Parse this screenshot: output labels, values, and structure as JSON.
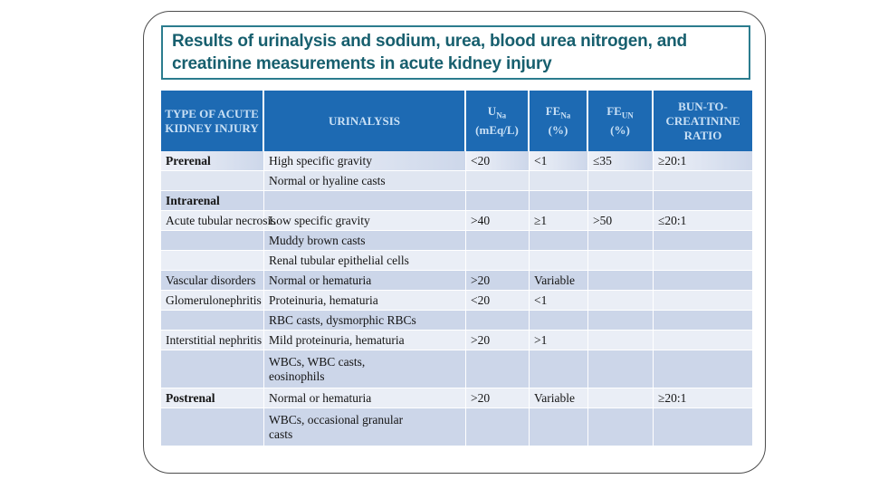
{
  "slide": {
    "title": "Results of urinalysis and sodium, urea, blood urea nitrogen, and creatinine measurements in acute kidney injury"
  },
  "colors": {
    "header_bg": "#1d6ab3",
    "header_text": "#c9e0f5",
    "title_text": "#175f6e",
    "title_border": "#2b7c8e",
    "row_light": "#eaeef6",
    "row_medium": "#ccd6e9",
    "outline": "#4d4d4d"
  },
  "table": {
    "columns": [
      {
        "id": "type",
        "label": "TYPE OF ACUTE KIDNEY INJURY"
      },
      {
        "id": "urinalysis",
        "label": "URINALYSIS"
      },
      {
        "id": "una",
        "base": "U",
        "sub": "Na",
        "unit": "(mEq/L)"
      },
      {
        "id": "fena",
        "base": "FE",
        "sub": "Na",
        "unit": "(%)"
      },
      {
        "id": "feun",
        "base": "FE",
        "sub": "UN",
        "unit": "(%)"
      },
      {
        "id": "bun",
        "label": "BUN-TO-CREATININE RATIO"
      }
    ],
    "rows": [
      {
        "type": "Prerenal",
        "bold": true,
        "urinalysis": "High specific gravity",
        "una": "<20",
        "fena": "<1",
        "feun": "≤35",
        "bun": "≥20:1",
        "shade": "grad",
        "tall": false
      },
      {
        "type": "",
        "bold": false,
        "urinalysis": "Normal or hyaline casts",
        "una": "",
        "fena": "",
        "feun": "",
        "bun": "",
        "shade": "mid",
        "tall": false
      },
      {
        "type": "Intrarenal",
        "bold": true,
        "urinalysis": "",
        "una": "",
        "fena": "",
        "feun": "",
        "bun": "",
        "shade": "medium",
        "tall": false
      },
      {
        "type": "Acute tubular necrosis",
        "bold": false,
        "urinalysis": "Low specific gravity",
        "una": ">40",
        "fena": "≥1",
        "feun": ">50",
        "bun": "≤20:1",
        "shade": "light",
        "tall": false
      },
      {
        "type": "",
        "bold": false,
        "urinalysis": "Muddy brown casts",
        "una": "",
        "fena": "",
        "feun": "",
        "bun": "",
        "shade": "medium",
        "tall": false
      },
      {
        "type": "",
        "bold": false,
        "urinalysis": "Renal tubular epithelial cells",
        "una": "",
        "fena": "",
        "feun": "",
        "bun": "",
        "shade": "light",
        "tall": false
      },
      {
        "type": "Vascular disorders",
        "bold": false,
        "urinalysis": "Normal or hematuria",
        "una": ">20",
        "fena": "Variable",
        "feun": "",
        "bun": "",
        "shade": "medium",
        "tall": false
      },
      {
        "type": "Glomerulonephritis",
        "bold": false,
        "urinalysis": "Proteinuria, hematuria",
        "una": "<20",
        "fena": "<1",
        "feun": "",
        "bun": "",
        "shade": "light",
        "tall": false
      },
      {
        "type": "",
        "bold": false,
        "urinalysis": "RBC casts, dysmorphic RBCs",
        "una": "",
        "fena": "",
        "feun": "",
        "bun": "",
        "shade": "medium",
        "tall": false
      },
      {
        "type": "Interstitial nephritis",
        "bold": false,
        "urinalysis": "Mild proteinuria, hematuria",
        "una": ">20",
        "fena": ">1",
        "feun": "",
        "bun": "",
        "shade": "light",
        "tall": false
      },
      {
        "type": "",
        "bold": false,
        "urinalysis": "WBCs, WBC casts,\neosinophils",
        "una": "",
        "fena": "",
        "feun": "",
        "bun": "",
        "shade": "medium",
        "tall": true
      },
      {
        "type": "Postrenal",
        "bold": true,
        "urinalysis": "Normal or hematuria",
        "una": ">20",
        "fena": "Variable",
        "feun": "",
        "bun": "≥20:1",
        "shade": "light",
        "tall": false
      },
      {
        "type": "",
        "bold": false,
        "urinalysis": "WBCs, occasional granular\ncasts",
        "una": "",
        "fena": "",
        "feun": "",
        "bun": "",
        "shade": "medium",
        "tall": true
      }
    ]
  }
}
